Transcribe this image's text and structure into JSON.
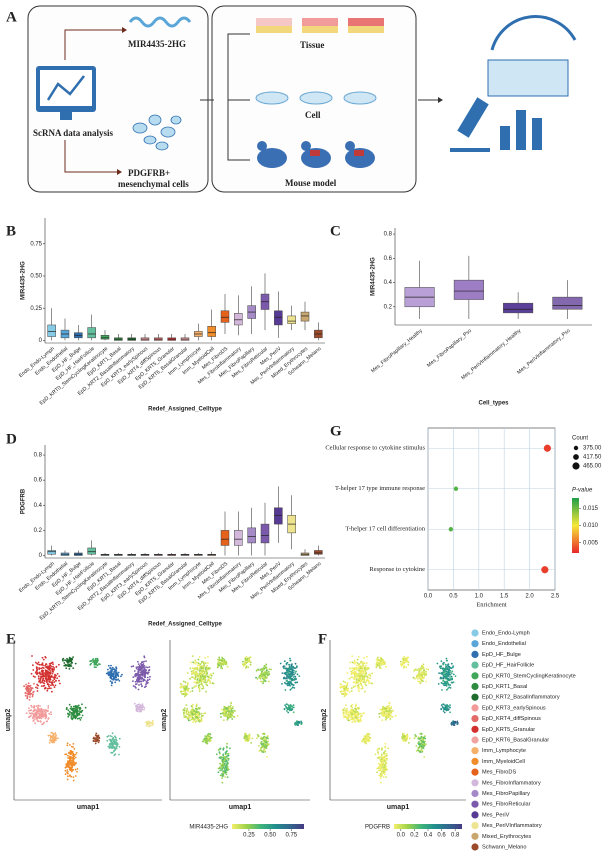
{
  "panels": {
    "a": {
      "label": "A",
      "scrna": "ScRNA data analysis",
      "gene": "MIR4435-2HG",
      "cells": [
        "PDGFRB+",
        "mesenchymal cells"
      ],
      "models": [
        "Tissue",
        "Cell",
        "Mouse model"
      ]
    },
    "e": {
      "label": "E",
      "xlabel": "umap1",
      "ylabel": "umap2"
    },
    "f": {
      "label": "F",
      "left": {
        "xlabel": "umap1",
        "ylabel": "umap2",
        "colorbar_title": "MIR4435-2HG",
        "colorbar_lim": [
          0.05,
          0.9
        ],
        "colorbar_ticks": [
          0.25,
          {
            "value": 0.5,
            "label": "0.50"
          },
          0.75
        ]
      },
      "right": {
        "xlabel": "umap1",
        "ylabel": "umap2",
        "colorbar_title": "PDGFRB",
        "colorbar_lim": [
          -0.1,
          0.9
        ],
        "colorbar_ticks": [
          {
            "value": 0,
            "label": "0.0"
          },
          0.2,
          0.4,
          0.6,
          0.8
        ]
      }
    }
  },
  "legend": {
    "names": [
      "Endo_Endo-Lymph",
      "Endo_Endothelial",
      "EpD_HF_Bulge",
      "EpD_HF_HairFollicle",
      "EpD_KRT0_StemCyclingKeratinocyte",
      "EpD_KRT1_Basal",
      "EpD_KRT2_BasalInflammatory",
      "EpD_KRT3_earlySpinous",
      "EpD_KRT4_diffSpinous",
      "EpD_KRT5_Granular",
      "EpD_KRT6_BasalGranular",
      "Imm_Lymphocyte",
      "Imm_MyeloidCell",
      "Mes_FibroDS",
      "Mes_FibroInflammatory",
      "Mes_FibroPapillary",
      "Mes_FibroReticular",
      "Mes_PeriV",
      "Mes_PeriVInflammatory",
      "Mixed_Erythrocytes",
      "Schwann_Melano"
    ],
    "colors": [
      "#86cbe6",
      "#5ba6d8",
      "#2f6fb0",
      "#64bf9e",
      "#3fa65a",
      "#2d8c3f",
      "#1e6b2e",
      "#f29a9a",
      "#e46a6a",
      "#d2302f",
      "#f0a3a0",
      "#f6b06a",
      "#f08c2a",
      "#e5621c",
      "#d4b8dc",
      "#a58ac8",
      "#7c5aab",
      "#563a93",
      "#eee38e",
      "#c9a66e",
      "#9b4a2a"
    ]
  },
  "chart_data": [
    {
      "type": "box",
      "panel_label": "B",
      "ylabel": "MIR4435-2HG",
      "xlabel": "Redef_Assigned_Celltype",
      "categories": [
        "Endo_Endo-Lymph",
        "Endo_Endothelial",
        "EpD_HF_Bulge",
        "EpD_HF_HairFollicle",
        "EpD_KRT0_StemCyclingKeratinocyte",
        "EpD_KRT1_Basal",
        "EpD_KRT2_BasalInflammatory",
        "EpD_KRT3_earlySpinous",
        "EpD_KRT4_diffSpinous",
        "EpD_KRT5_Granular",
        "EpD_KRT6_BasalGranular",
        "Imm_Lymphocyte",
        "Imm_MyeloidCell",
        "Mes_FibroDS",
        "Mes_FibroInflammatory",
        "Mes_FibroPapillary",
        "Mes_FibroReticular",
        "Mes_PeriV",
        "Mes_PeriVInflammatory",
        "Mixed_Erythrocytes",
        "Schwann_Melano"
      ],
      "whisker_low": [
        0,
        0,
        0,
        0,
        0,
        0,
        0,
        0,
        0,
        0,
        0,
        0,
        0,
        0.05,
        0.04,
        0.05,
        0.08,
        0.02,
        0.08,
        0.08,
        0
      ],
      "q1": [
        0.03,
        0.02,
        0.02,
        0.02,
        0.01,
        0,
        0,
        0,
        0,
        0,
        0,
        0.03,
        0.03,
        0.14,
        0.12,
        0.17,
        0.24,
        0.12,
        0.13,
        0.15,
        0.02
      ],
      "median": [
        0.07,
        0.05,
        0.04,
        0.05,
        0.02,
        0.01,
        0.01,
        0.01,
        0.01,
        0.01,
        0.01,
        0.05,
        0.06,
        0.18,
        0.16,
        0.22,
        0.3,
        0.18,
        0.15,
        0.19,
        0.05
      ],
      "q3": [
        0.12,
        0.08,
        0.06,
        0.1,
        0.04,
        0.02,
        0.02,
        0.02,
        0.02,
        0.02,
        0.02,
        0.07,
        0.11,
        0.23,
        0.21,
        0.27,
        0.36,
        0.23,
        0.19,
        0.22,
        0.08
      ],
      "whisker_high": [
        0.25,
        0.17,
        0.12,
        0.2,
        0.08,
        0.05,
        0.05,
        0.05,
        0.05,
        0.05,
        0.05,
        0.13,
        0.24,
        0.36,
        0.35,
        0.42,
        0.52,
        0.38,
        0.27,
        0.3,
        0.14
      ],
      "ylim": [
        -0.02,
        0.95
      ],
      "yticks": [
        0,
        0.25,
        {
          "value": 0.5,
          "label": "0.50"
        },
        0.75
      ]
    },
    {
      "type": "box",
      "panel_label": "C",
      "ylabel": "MIR4435-2HG",
      "xlabel": "Cell_types",
      "categories": [
        "Mes_FibroPapillary_Healthy",
        "Mes_FibroPapillary_Pso",
        "Mes_PeriVInflammatory_Healthy",
        "Mes_PeriVInflammatory_Pso"
      ],
      "colors": [
        "#b9a1d8",
        "#9d7dc4",
        "#5b3f99",
        "#8468ae"
      ],
      "whisker_low": [
        0.1,
        0.1,
        0.1,
        0.1
      ],
      "q1": [
        0.2,
        0.26,
        0.15,
        0.18
      ],
      "median": [
        0.28,
        0.33,
        0.18,
        0.21
      ],
      "q3": [
        0.36,
        0.42,
        0.23,
        0.28
      ],
      "whisker_high": [
        0.58,
        0.62,
        0.32,
        0.42
      ],
      "ylim": [
        0.05,
        0.85
      ],
      "yticks": [
        0.2,
        0.4,
        0.6,
        0.8
      ]
    },
    {
      "type": "box",
      "panel_label": "D",
      "ylabel": "PDGFRB",
      "xlabel": "Redef_Assigned_Celltype",
      "categories": [
        "Endo_Endo-Lymph",
        "Endo_Endothelial",
        "EpD_HF_Bulge",
        "EpD_HF_HairFollicle",
        "EpD_KRT0_StemCyclingKeratinocyte",
        "EpD_KRT1_Basal",
        "EpD_KRT2_BasalInflammatory",
        "EpD_KRT3_earlySpinous",
        "EpD_KRT4_diffSpinous",
        "EpD_KRT5_Granular",
        "EpD_KRT6_BasalGranular",
        "Imm_Lymphocyte",
        "Imm_MyeloidCell",
        "Mes_FibroDS",
        "Mes_FibroInflammatory",
        "Mes_FibroPapillary",
        "Mes_FibroReticular",
        "Mes_PeriV",
        "Mes_PeriVInflammatory",
        "Mixed_Erythrocytes",
        "Schwann_Melano"
      ],
      "whisker_low": [
        0,
        0,
        0,
        0,
        0,
        0,
        0,
        0,
        0,
        0,
        0,
        0,
        0,
        0,
        0,
        0,
        0,
        0.1,
        0.05,
        0,
        0
      ],
      "q1": [
        0.01,
        0,
        0,
        0.01,
        0,
        0,
        0,
        0,
        0,
        0,
        0,
        0,
        0,
        0.08,
        0.08,
        0.1,
        0.1,
        0.25,
        0.18,
        0,
        0.01
      ],
      "median": [
        0.03,
        0.01,
        0.01,
        0.03,
        0.005,
        0.005,
        0.005,
        0.005,
        0.005,
        0.005,
        0.005,
        0.005,
        0.005,
        0.13,
        0.13,
        0.15,
        0.16,
        0.32,
        0.25,
        0.01,
        0.02
      ],
      "q3": [
        0.04,
        0.02,
        0.02,
        0.06,
        0.01,
        0.01,
        0.01,
        0.01,
        0.01,
        0.01,
        0.01,
        0.01,
        0.01,
        0.2,
        0.2,
        0.22,
        0.25,
        0.38,
        0.32,
        0.02,
        0.04
      ],
      "whisker_high": [
        0.08,
        0.04,
        0.04,
        0.12,
        0.02,
        0.02,
        0.02,
        0.02,
        0.02,
        0.02,
        0.02,
        0.02,
        0.03,
        0.35,
        0.35,
        0.38,
        0.42,
        0.55,
        0.48,
        0.05,
        0.08
      ],
      "ylim": [
        -0.02,
        0.88
      ],
      "yticks": [
        0,
        0.2,
        0.4,
        0.6,
        0.8
      ]
    },
    {
      "type": "dot",
      "panel_label": "G",
      "xlabel": "Enrichment",
      "categories": [
        "Cellular response to cytokine stimulus",
        "T-helper 17 type immune response",
        "T-helper 17 cell differentiation",
        "Response to cytokine"
      ],
      "values": [
        2.35,
        0.55,
        0.45,
        2.3
      ],
      "count": [
        465,
        375,
        375,
        465
      ],
      "pvalue": [
        0.003,
        0.016,
        0.016,
        0.003
      ],
      "xlim": [
        0,
        2.5
      ],
      "xticks": [
        {
          "value": 0,
          "label": "0.0"
        },
        0.5,
        {
          "value": 1,
          "label": "1.0"
        },
        1.5,
        {
          "value": 2,
          "label": "2.0"
        },
        2.5
      ],
      "size_title": "Count",
      "size_ticks": [
        {
          "value": 375,
          "label": "375.00"
        },
        {
          "value": 417.5,
          "label": "417.50"
        },
        {
          "value": 465,
          "label": "465.00"
        }
      ],
      "color_title": "P-value",
      "color_lim": [
        0.002,
        0.018
      ],
      "color_ticks": [
        0.005,
        {
          "value": 0.01,
          "label": "0.010"
        },
        0.015
      ],
      "colorscale": [
        "#e8262b",
        "#f6e83a",
        "#1f9e48"
      ]
    }
  ]
}
